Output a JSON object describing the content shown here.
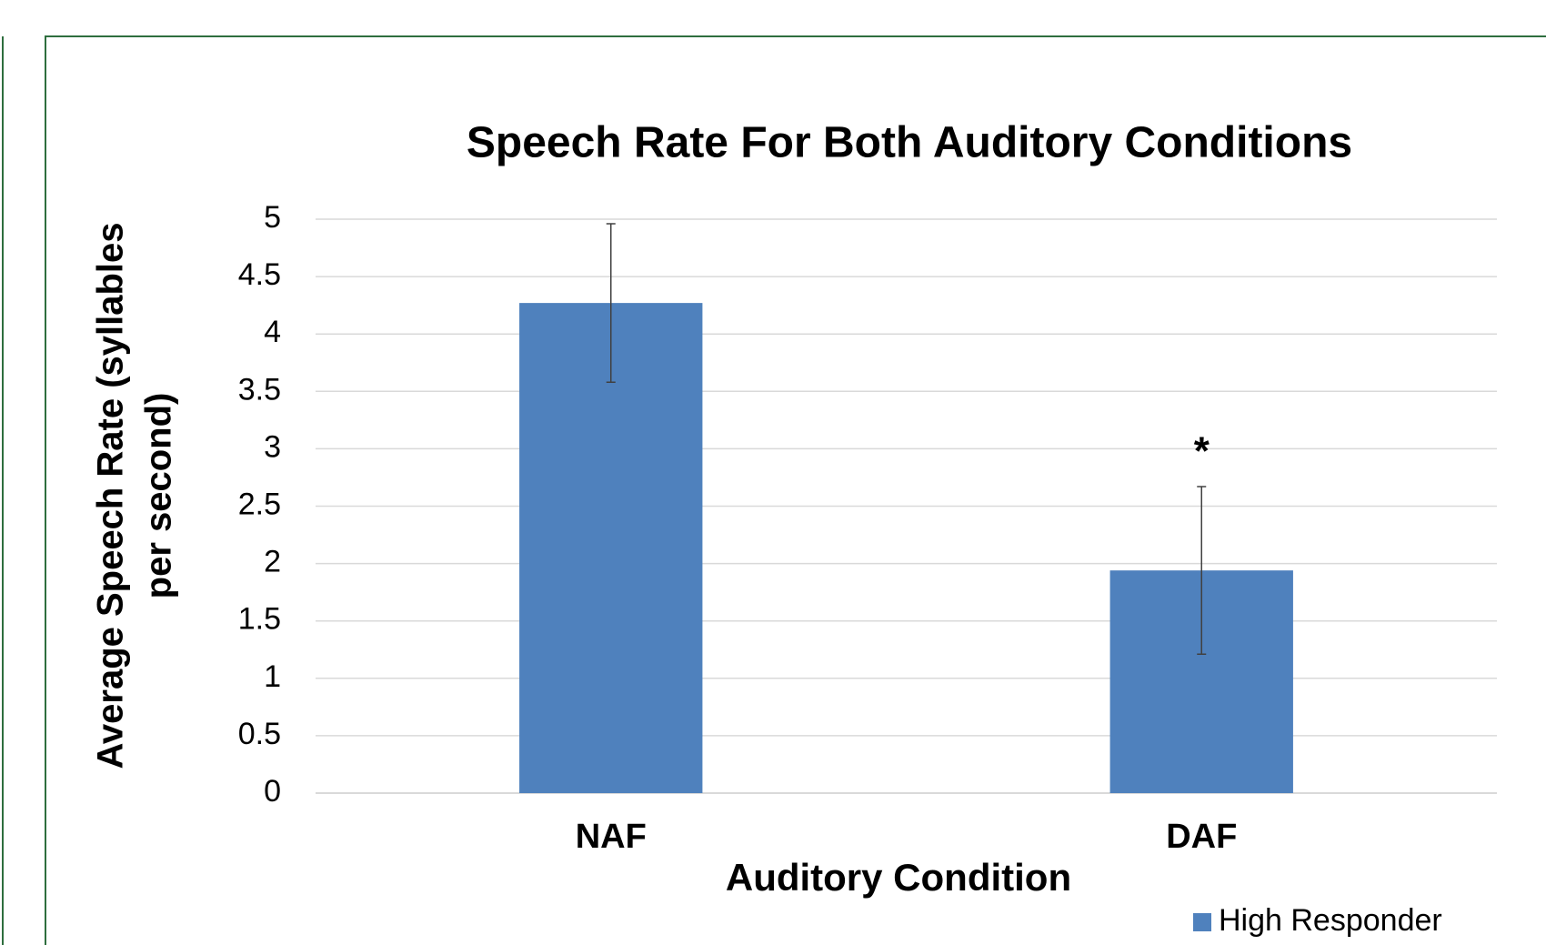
{
  "chart_data": {
    "type": "bar",
    "title": "Speech Rate For Both Auditory Conditions",
    "y_label_lines": [
      "Average Speech Rate (syllables",
      "per second)"
    ],
    "x_label": "Auditory Condition",
    "categories": [
      "NAF",
      "DAF"
    ],
    "series": [
      {
        "name": "High Responder",
        "color": "#4f81bd",
        "values": [
          4.27,
          1.94
        ],
        "errors": [
          0.69,
          0.73
        ]
      }
    ],
    "annotations": [
      {
        "text": "*",
        "category": "DAF"
      }
    ],
    "ylim": [
      0,
      5
    ],
    "yticks": [
      0,
      0.5,
      1,
      1.5,
      2,
      2.5,
      3,
      3.5,
      4,
      4.5,
      5
    ],
    "grid": true,
    "legend": "bottom-right"
  }
}
